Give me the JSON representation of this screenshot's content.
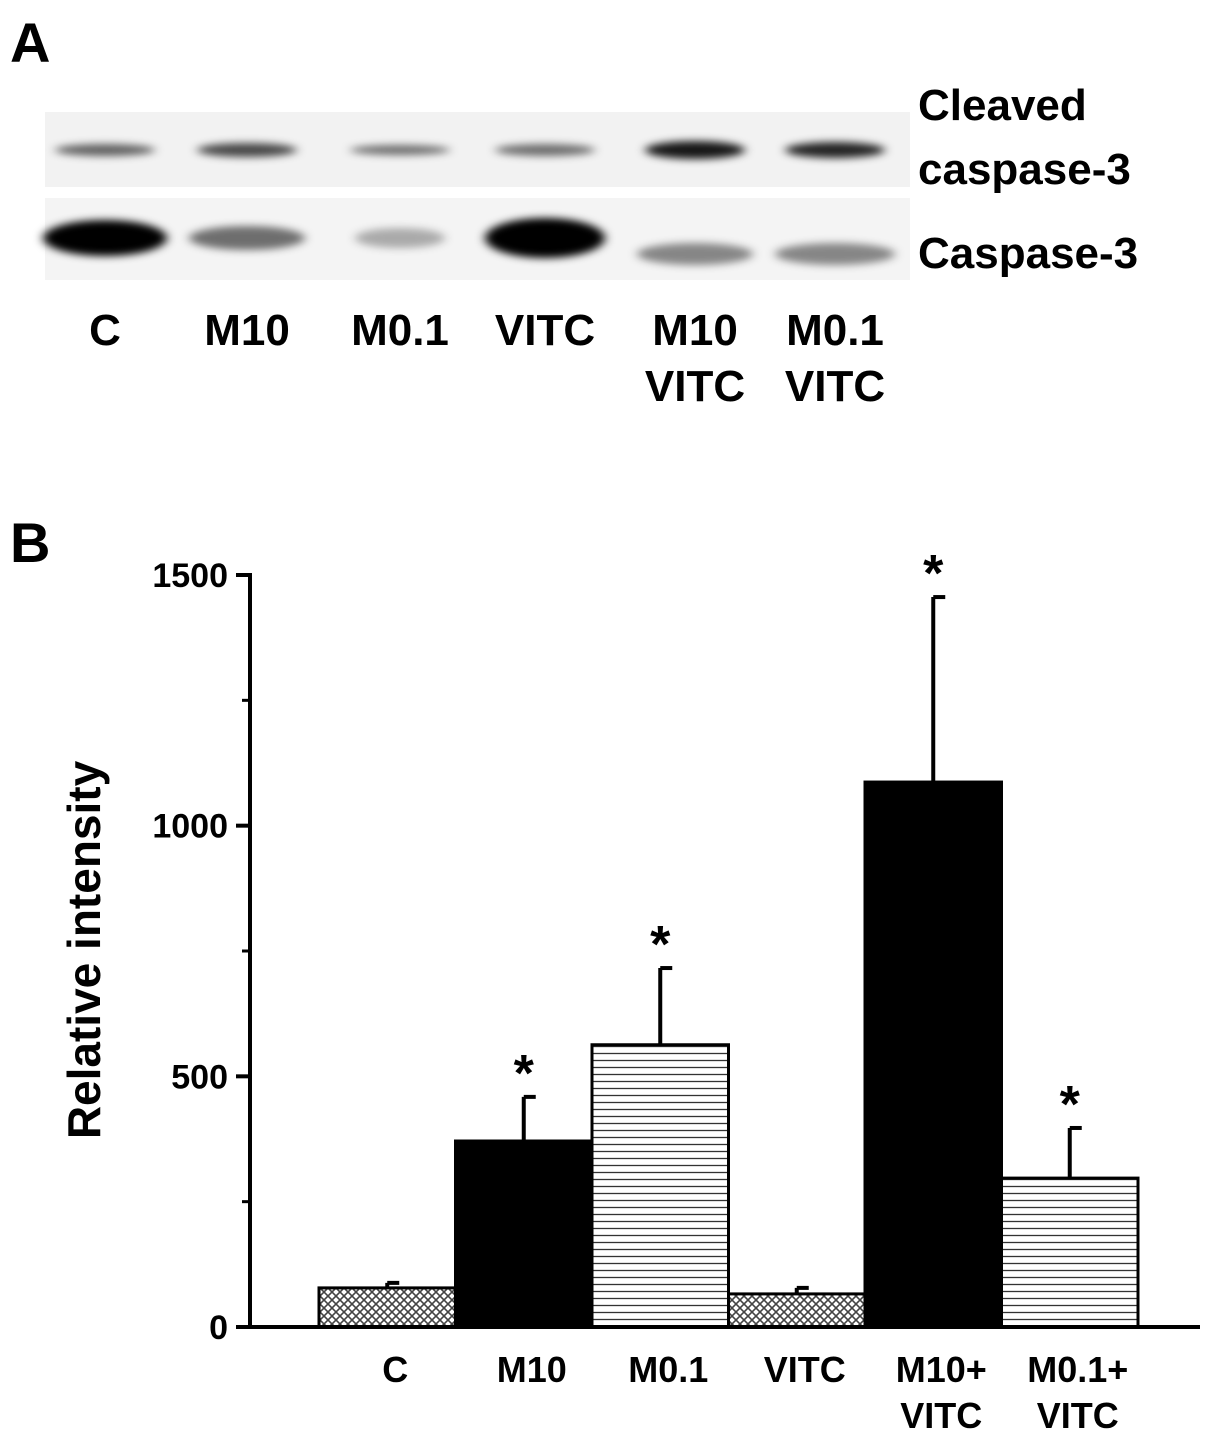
{
  "panel_a": {
    "label": "A",
    "band_labels": [
      "Cleaved caspase-3",
      "Caspase-3"
    ],
    "lanes": [
      "C",
      "M10",
      "M0.1",
      "VITC",
      "M10 VITC",
      "M0.1 VITC"
    ]
  },
  "chart_data": {
    "type": "bar",
    "panel_label": "B",
    "y_label": "Relative intensity",
    "categories": [
      "C",
      "M10",
      "M0.1",
      "VITC",
      "M10+ VITC",
      "M0.1+ VITC"
    ],
    "values": [
      78,
      371,
      563,
      66,
      1087,
      297
    ],
    "errors": [
      10,
      88,
      153,
      12,
      369,
      100
    ],
    "annotations": [
      null,
      "*",
      "*",
      null,
      "*",
      "*"
    ],
    "fills": [
      "crosshatch",
      "solid",
      "hlines",
      "crosshatch",
      "solid",
      "hlines"
    ],
    "color": "#000000",
    "ylim": [
      0,
      1500
    ],
    "yticks": [
      0,
      500,
      1000,
      1500
    ],
    "minor_yticks": [
      250,
      750,
      1250
    ]
  }
}
